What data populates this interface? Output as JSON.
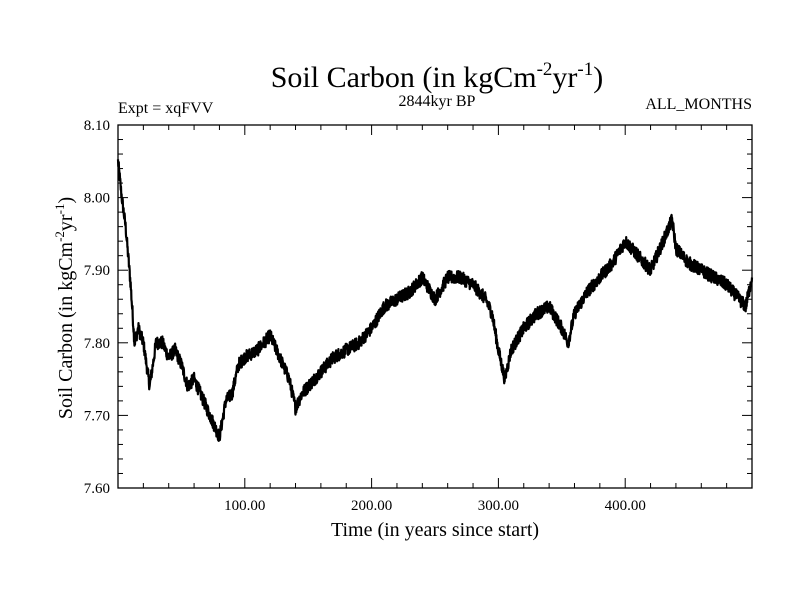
{
  "chart_data": {
    "type": "line",
    "title": {
      "main": "Soil Carbon (in kgCm",
      "sup1": "-2",
      "middle": "yr",
      "sup2": "-1",
      "end": ")"
    },
    "subtitle_left": "Expt = xqFVV",
    "subtitle_center": "2844kyr BP",
    "subtitle_right": "ALL_MONTHS",
    "xlabel": "Time (in years since start)",
    "ylabel": {
      "main": "Soil Carbon (in kgCm",
      "sup1": "-2",
      "middle": "yr",
      "sup2": "-1",
      "end": ")"
    },
    "xlim": [
      0,
      500
    ],
    "ylim": [
      7.6,
      8.1
    ],
    "x_ticks": [
      100,
      200,
      300,
      400
    ],
    "x_tick_labels": [
      "100.00",
      "200.00",
      "300.00",
      "400.00"
    ],
    "y_ticks": [
      7.6,
      7.7,
      7.8,
      7.9,
      8.0,
      8.1
    ],
    "y_tick_labels": [
      "7.60",
      "7.70",
      "7.80",
      "7.90",
      "8.00",
      "8.10"
    ],
    "series": [
      {
        "name": "Soil Carbon",
        "color": "#000000",
        "x": [
          0,
          3,
          6,
          10,
          13,
          16,
          20,
          25,
          30,
          35,
          40,
          45,
          50,
          55,
          60,
          65,
          70,
          75,
          80,
          85,
          90,
          95,
          100,
          110,
          120,
          125,
          130,
          135,
          140,
          145,
          150,
          160,
          170,
          180,
          190,
          200,
          210,
          220,
          230,
          240,
          250,
          260,
          270,
          280,
          290,
          295,
          300,
          305,
          310,
          320,
          330,
          340,
          350,
          355,
          360,
          370,
          380,
          390,
          400,
          410,
          420,
          430,
          437,
          440,
          450,
          460,
          470,
          480,
          490,
          495,
          500
        ],
        "y": [
          8.05,
          8.0,
          7.96,
          7.88,
          7.8,
          7.82,
          7.8,
          7.74,
          7.8,
          7.8,
          7.78,
          7.79,
          7.77,
          7.74,
          7.75,
          7.73,
          7.71,
          7.69,
          7.67,
          7.72,
          7.73,
          7.77,
          7.78,
          7.79,
          7.81,
          7.79,
          7.77,
          7.75,
          7.71,
          7.73,
          7.74,
          7.76,
          7.78,
          7.79,
          7.8,
          7.82,
          7.85,
          7.86,
          7.87,
          7.89,
          7.86,
          7.89,
          7.89,
          7.88,
          7.86,
          7.84,
          7.79,
          7.75,
          7.79,
          7.82,
          7.84,
          7.85,
          7.82,
          7.8,
          7.84,
          7.87,
          7.89,
          7.91,
          7.94,
          7.92,
          7.9,
          7.94,
          7.97,
          7.93,
          7.91,
          7.9,
          7.89,
          7.88,
          7.86,
          7.85,
          7.89
        ]
      }
    ]
  }
}
